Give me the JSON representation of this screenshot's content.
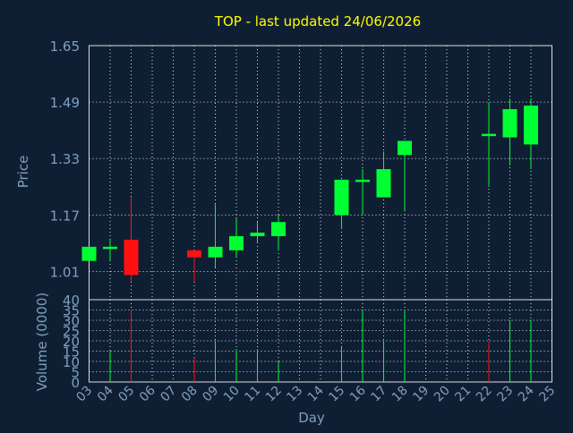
{
  "chart_data": [
    {
      "type": "candlestick",
      "title": "TOP - last updated 24/06/2026",
      "xlabel": "Day",
      "ylabel": "Price",
      "ylim": [
        0.93,
        1.65
      ],
      "yticks": [
        1.01,
        1.17,
        1.33,
        1.49,
        1.65
      ],
      "grid": true,
      "categories": [
        "03",
        "04",
        "05",
        "06",
        "07",
        "08",
        "09",
        "10",
        "11",
        "12",
        "13",
        "14",
        "15",
        "16",
        "17",
        "18",
        "19",
        "20",
        "21",
        "22",
        "23",
        "24",
        "25"
      ],
      "x": [
        "03",
        "04",
        "05",
        "08",
        "09",
        "10",
        "11",
        "12",
        "15",
        "16",
        "17",
        "18",
        "22",
        "23",
        "24"
      ],
      "open": [
        1.04,
        1.08,
        1.1,
        1.07,
        1.05,
        1.07,
        1.11,
        1.11,
        1.17,
        1.27,
        1.22,
        1.34,
        1.4,
        1.39,
        1.37
      ],
      "high": [
        1.08,
        1.1,
        1.22,
        1.07,
        1.2,
        1.16,
        1.15,
        1.17,
        1.27,
        1.3,
        1.35,
        1.38,
        1.49,
        1.5,
        1.5
      ],
      "low": [
        1.04,
        1.04,
        0.98,
        0.98,
        1.02,
        1.05,
        1.09,
        1.07,
        1.13,
        1.17,
        1.22,
        1.18,
        1.25,
        1.31,
        1.3
      ],
      "close": [
        1.08,
        1.08,
        1.0,
        1.05,
        1.08,
        1.11,
        1.12,
        1.15,
        1.27,
        1.27,
        1.3,
        1.38,
        1.4,
        1.47,
        1.48
      ],
      "colors": {
        "up": "#00ff33",
        "down": "#ff1111"
      }
    },
    {
      "type": "bar",
      "ylabel": "Volume (0000)",
      "ylim": [
        0,
        40
      ],
      "yticks": [
        0,
        5,
        10,
        15,
        20,
        25,
        30,
        35,
        40
      ],
      "x": [
        "03",
        "04",
        "05",
        "08",
        "09",
        "10",
        "11",
        "12",
        "15",
        "16",
        "17",
        "18",
        "22",
        "23",
        "24"
      ],
      "values": [
        0,
        15,
        35,
        12,
        20,
        16,
        16,
        10,
        17,
        35,
        20,
        35,
        20,
        30,
        30
      ],
      "direction": [
        "up",
        "up",
        "down",
        "down",
        "up",
        "up",
        "up",
        "up",
        "up",
        "up",
        "up",
        "up",
        "down",
        "up",
        "up"
      ]
    }
  ],
  "colors": {
    "background": "#0f1f33",
    "title": "#ffff00",
    "axis_text": "#7f9fbf",
    "grid": "#dddddd"
  }
}
